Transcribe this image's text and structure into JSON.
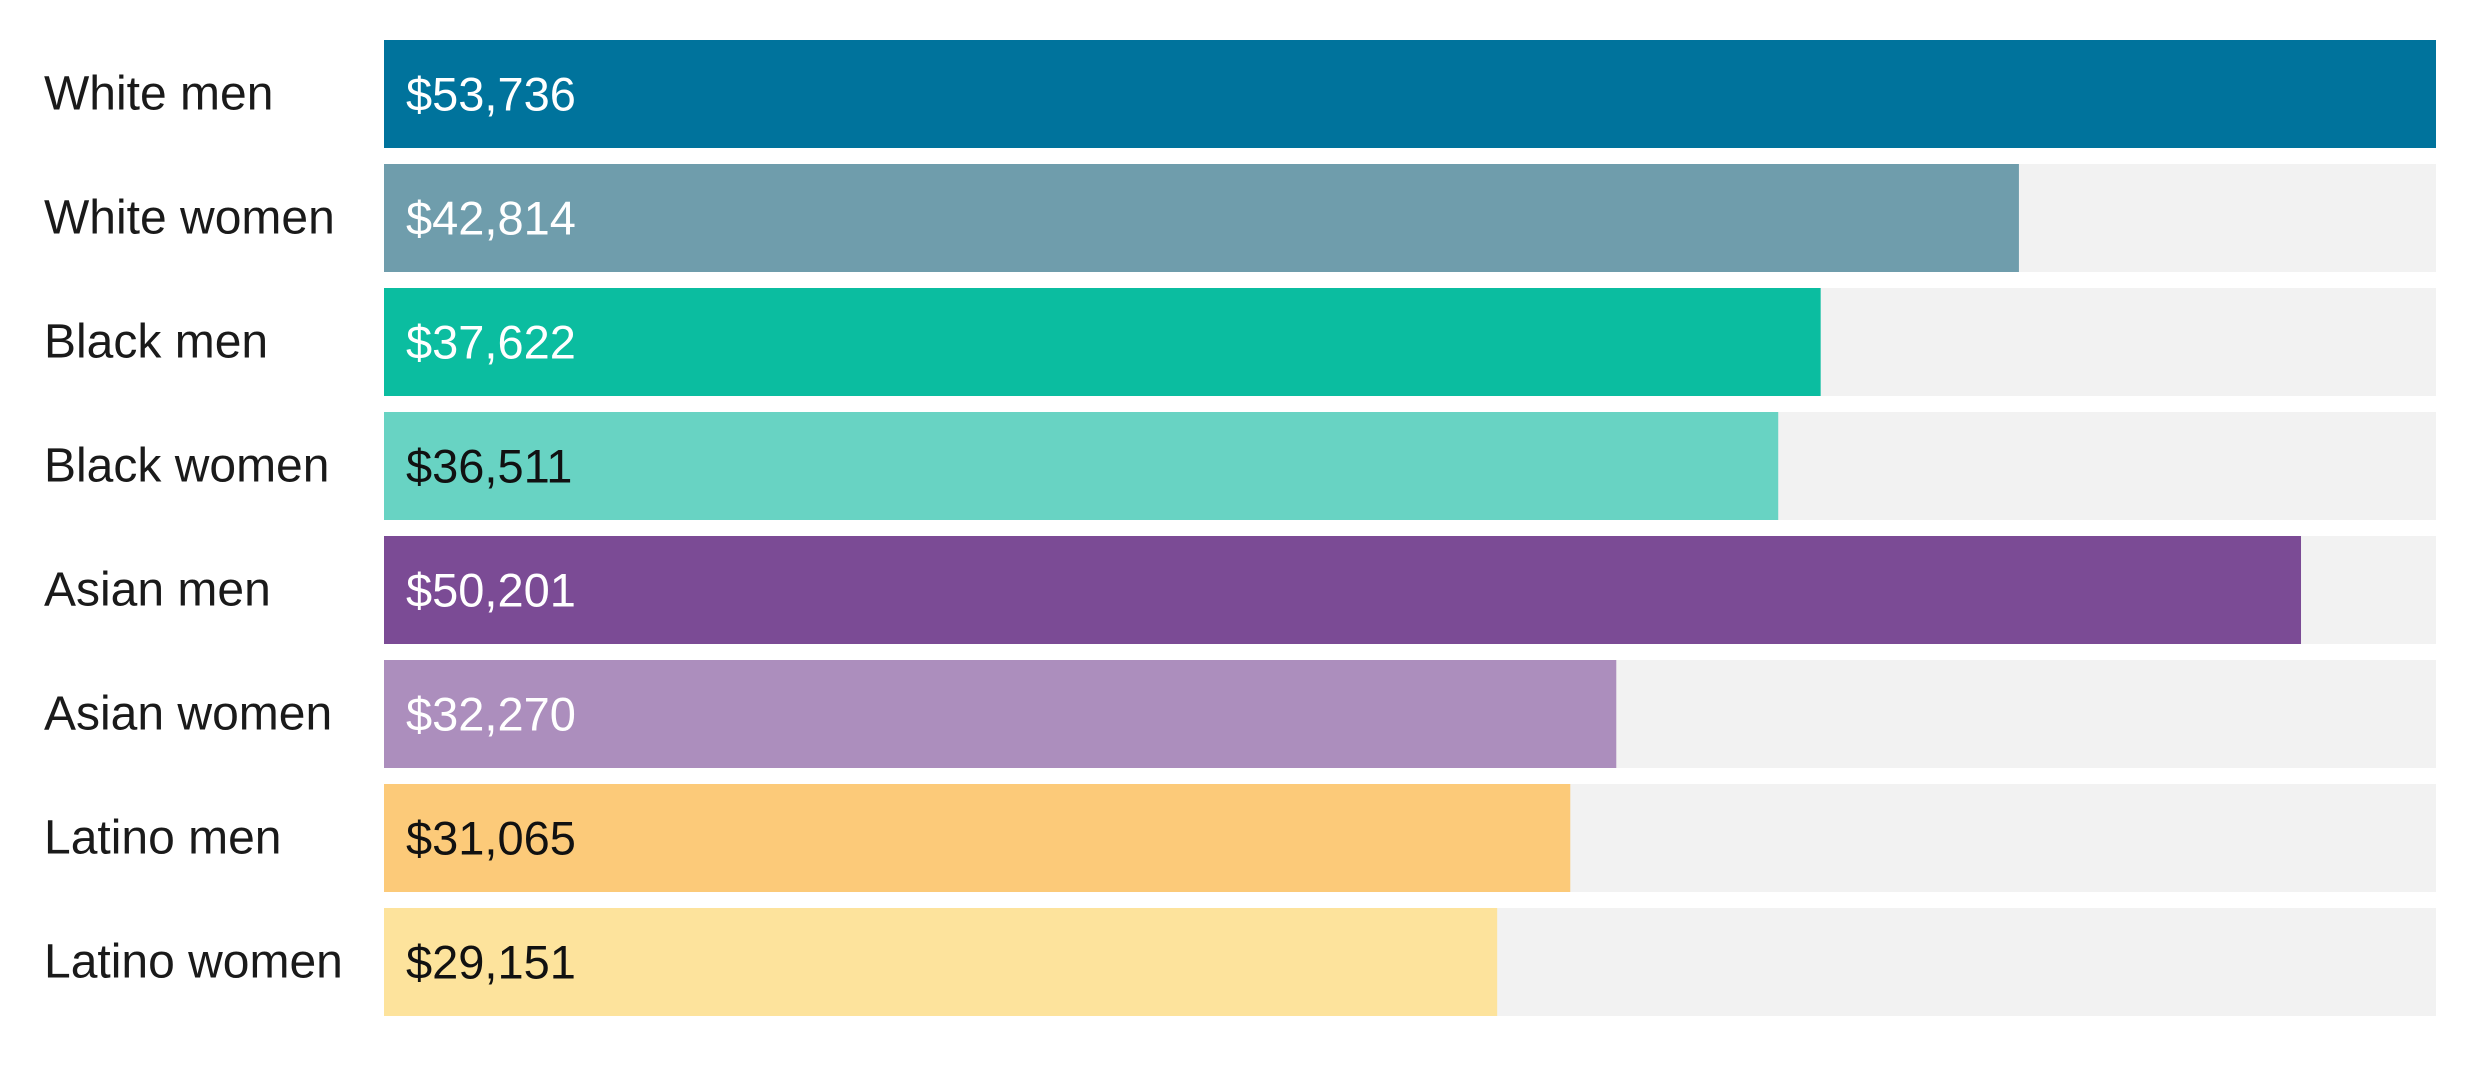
{
  "chart_data": {
    "type": "bar",
    "orientation": "horizontal",
    "categories": [
      "White men",
      "White women",
      "Black men",
      "Black women",
      "Asian men",
      "Asian women",
      "Latino men",
      "Latino women"
    ],
    "values": [
      53736,
      42814,
      37622,
      36511,
      50201,
      32270,
      31065,
      29151
    ],
    "value_labels": [
      "$53,736",
      "$42,814",
      "$37,622",
      "$36,511",
      "$50,201",
      "$32,270",
      "$31,065",
      "$29,151"
    ],
    "colors": [
      "#00739c",
      "#6f9dac",
      "#0bbda0",
      "#68d3c3",
      "#7b4b95",
      "#ac8ebd",
      "#fcca79",
      "#fde39c"
    ],
    "label_colors": [
      "#ffffff",
      "#ffffff",
      "#ffffff",
      "#111111",
      "#ffffff",
      "#ffffff",
      "#111111",
      "#111111"
    ],
    "track_color": "#f2f2f2",
    "xlim": [
      0,
      53736
    ],
    "grid": false,
    "legend": "none",
    "title": "",
    "xlabel": "",
    "ylabel": ""
  }
}
